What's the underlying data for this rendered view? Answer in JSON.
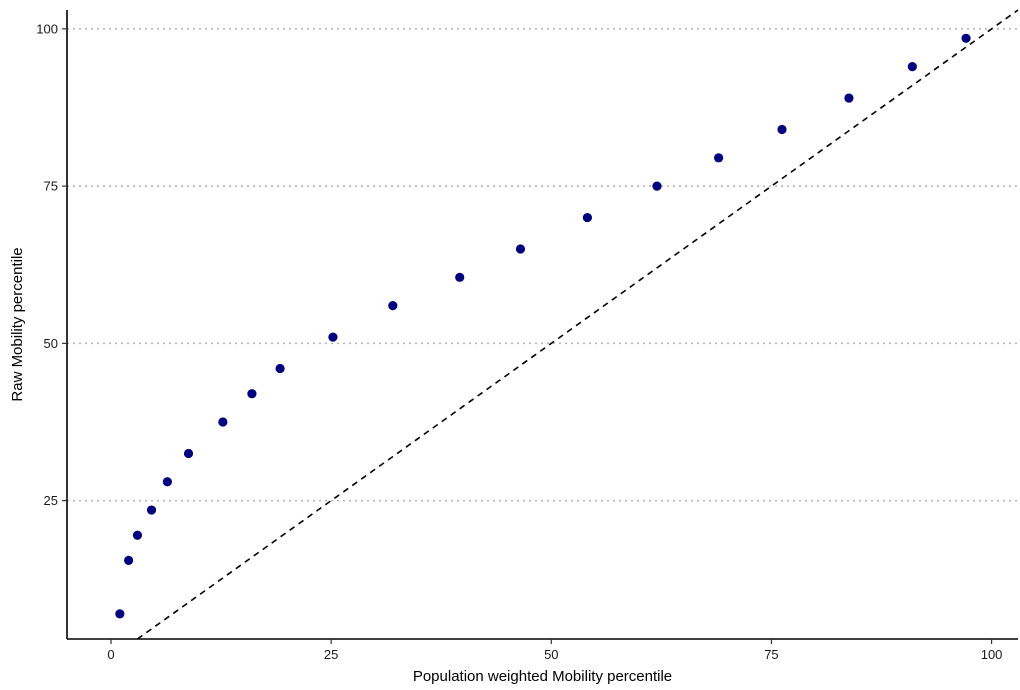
{
  "chart_data": {
    "type": "scatter",
    "title": "",
    "xlabel": "Population weighted Mobility percentile",
    "ylabel": "Raw Mobility percentile",
    "xlim": [
      -5,
      103
    ],
    "ylim": [
      3,
      103
    ],
    "x_ticks": [
      0,
      25,
      50,
      75,
      100
    ],
    "y_ticks": [
      25,
      50,
      75,
      100
    ],
    "x_tick_labels": [
      "0",
      "25",
      "50",
      "75",
      "100"
    ],
    "y_tick_labels": [
      "25",
      "50",
      "75",
      "100"
    ],
    "grid": "horizontal dotted at y ticks",
    "legend": "none",
    "point_color": "#00007f",
    "reference_line": {
      "style": "dashed",
      "slope": 1,
      "intercept": 0,
      "color": "#000000"
    },
    "series": [
      {
        "x": [
          1.0,
          2.0,
          3.0,
          4.6,
          6.4,
          8.8,
          12.7,
          16.0,
          19.2,
          25.2,
          32.0,
          39.6,
          46.5,
          54.1,
          62.0,
          69.0,
          76.2,
          83.8,
          91.0,
          97.1
        ],
        "y": [
          7.0,
          15.5,
          19.5,
          23.5,
          28.0,
          32.5,
          37.5,
          42.0,
          46.0,
          51.0,
          56.0,
          60.5,
          65.0,
          70.0,
          75.0,
          79.5,
          84.0,
          89.0,
          94.0,
          98.5
        ]
      }
    ]
  }
}
